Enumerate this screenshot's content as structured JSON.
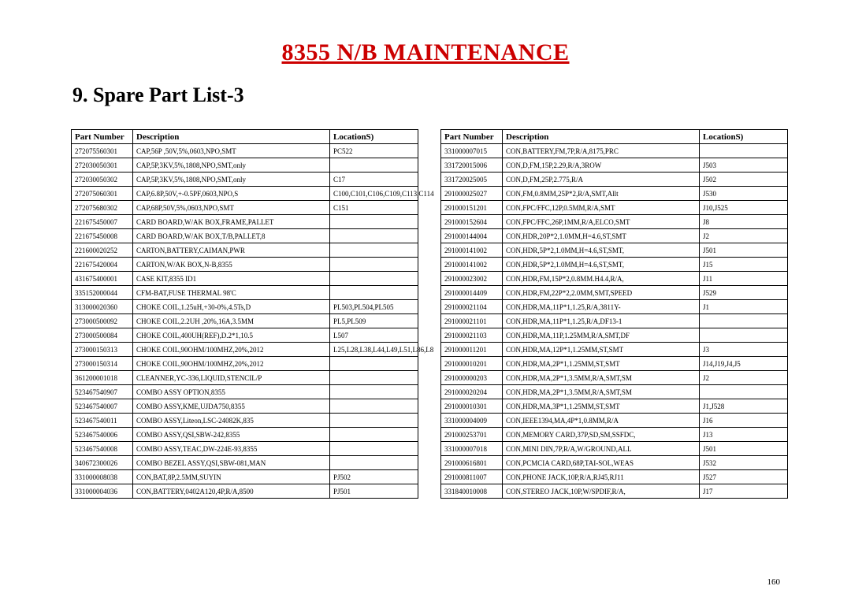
{
  "title": "8355 N/B MAINTENANCE",
  "subtitle": "9. Spare Part List-3",
  "pageNumber": "160",
  "headers": {
    "pn": "Part Number",
    "desc": "Description",
    "loc": "LocationS)"
  },
  "left": [
    {
      "pn": "272075560301",
      "desc": "CAP,56P ,50V,5%,0603,NPO,SMT",
      "loc": "PC522"
    },
    {
      "pn": "272030050301",
      "desc": "CAP,5P,3KV,5%,1808,NPO,SMT,only",
      "loc": ""
    },
    {
      "pn": "272030050302",
      "desc": "CAP,5P,3KV,5%,1808,NPO,SMT,only",
      "loc": "C17"
    },
    {
      "pn": "272075060301",
      "desc": "CAP,6.8P,50V,+-0.5PF,0603,NPO,S",
      "loc": "C100,C101,C106,C109,C113,C114"
    },
    {
      "pn": "272075680302",
      "desc": "CAP,68P,50V,5%,0603,NPO,SMT",
      "loc": "C151"
    },
    {
      "pn": "221675450007",
      "desc": "CARD BOARD,W/AK BOX,FRAME,PALLET",
      "loc": ""
    },
    {
      "pn": "221675450008",
      "desc": "CARD BOARD,W/AK BOX,T/B,PALLET,8",
      "loc": ""
    },
    {
      "pn": "221600020252",
      "desc": "CARTON,BATTERY,CAIMAN,PWR",
      "loc": ""
    },
    {
      "pn": "221675420004",
      "desc": "CARTON,W/AK BOX,N-B,8355",
      "loc": ""
    },
    {
      "pn": "431675400001",
      "desc": "CASE KIT,8355 ID1",
      "loc": ""
    },
    {
      "pn": "335152000044",
      "desc": "CFM-BAT,FUSE THERMAL 98'C",
      "loc": ""
    },
    {
      "pn": "313000020360",
      "desc": "CHOKE COIL,1.25uH,+30-0%,4.5Ts,D",
      "loc": "PL503,PL504,PL505"
    },
    {
      "pn": "273000500092",
      "desc": "CHOKE COIL,2.2UH ,20%,16A,3.5MM",
      "loc": "PL5,PL509"
    },
    {
      "pn": "273000500084",
      "desc": "CHOKE COIL,400UH(REF),D.2*1,10.5",
      "loc": "L507"
    },
    {
      "pn": "273000150313",
      "desc": "CHOKE COIL,90OHM/100MHZ,20%,2012",
      "loc": "L25,L28,L38,L44,L49,L51,L86,L8"
    },
    {
      "pn": "273000150314",
      "desc": "CHOKE COIL,90OHM/100MHZ,20%,2012",
      "loc": ""
    },
    {
      "pn": "361200001018",
      "desc": "CLEANNER,YC-336,LIQUID,STENCIL/P",
      "loc": ""
    },
    {
      "pn": "523467540907",
      "desc": "COMBO ASSY OPTION,8355",
      "loc": ""
    },
    {
      "pn": "523467540007",
      "desc": "COMBO ASSY,KME,UJDA750,8355",
      "loc": ""
    },
    {
      "pn": "523467540011",
      "desc": "COMBO ASSY,Liteon,LSC-24082K,835",
      "loc": ""
    },
    {
      "pn": "523467540006",
      "desc": "COMBO ASSY,QSI,SBW-242,8355",
      "loc": ""
    },
    {
      "pn": "523467540008",
      "desc": "COMBO ASSY,TEAC,DW-224E-93,8355",
      "loc": ""
    },
    {
      "pn": "340672300026",
      "desc": "COMBO BEZEL ASSY,QSI,SBW-081,MAN",
      "loc": ""
    },
    {
      "pn": "331000008038",
      "desc": "CON,BAT,8P,2.5MM,SUYIN",
      "loc": "PJ502"
    },
    {
      "pn": "331000004036",
      "desc": "CON,BATTERY,0402A120,4P,R/A,8500",
      "loc": "PJ501"
    }
  ],
  "right": [
    {
      "pn": "331000007015",
      "desc": "CON,BATTERY,FM,7P,R/A,8175,PRC",
      "loc": ""
    },
    {
      "pn": "331720015006",
      "desc": "CON,D,FM,15P,2.29,R/A,3ROW",
      "loc": "J503"
    },
    {
      "pn": "331720025005",
      "desc": "CON,D,FM,25P,2.775,R/A",
      "loc": "J502"
    },
    {
      "pn": "291000025027",
      "desc": "CON,FM,0.8MM,25P*2,R/A,SMT,Allt",
      "loc": "J530"
    },
    {
      "pn": "291000151201",
      "desc": "CON,FPC/FFC,12P,0.5MM,R/A,SMT",
      "loc": "J10,J525"
    },
    {
      "pn": "291000152604",
      "desc": "CON,FPC/FFC,26P,1MM,R/A,ELCO,SMT",
      "loc": "J8"
    },
    {
      "pn": "291000144004",
      "desc": "CON,HDR,20P*2,1.0MM,H=4.6,ST,SMT",
      "loc": "J2"
    },
    {
      "pn": "291000141002",
      "desc": "CON,HDR,5P*2,1.0MM,H=4.6,ST,SMT,",
      "loc": "J501"
    },
    {
      "pn": "291000141002",
      "desc": "CON,HDR,5P*2,1.0MM,H=4.6,ST,SMT,",
      "loc": "J15"
    },
    {
      "pn": "291000023002",
      "desc": "CON,HDR,FM,15P*2,0.8MM.H4.4,R/A,",
      "loc": "J11"
    },
    {
      "pn": "291000014409",
      "desc": "CON,HDR,FM,22P*2,2.0MM,SMT,SPEED",
      "loc": "J529"
    },
    {
      "pn": "291000021104",
      "desc": "CON,HDR,MA,11P*1,1.25,R/A,3811Y-",
      "loc": "J1"
    },
    {
      "pn": "291000021101",
      "desc": "CON,HDR,MA,11P*1,1.25,R/A,DF13-1",
      "loc": ""
    },
    {
      "pn": "291000021103",
      "desc": "CON,HDR,MA,11P,1.25MM,R/A,SMT,DF",
      "loc": ""
    },
    {
      "pn": "291000011201",
      "desc": "CON,HDR,MA,12P*1,1.25MM,ST,SMT",
      "loc": "J3"
    },
    {
      "pn": "291000010201",
      "desc": "CON,HDR,MA,2P*1,1.25MM,ST,SMT",
      "loc": "J14,J19,J4,J5"
    },
    {
      "pn": "291000000203",
      "desc": "CON,HDR,MA,2P*1,3.5MM,R/A,SMT,SM",
      "loc": "J2"
    },
    {
      "pn": "291000020204",
      "desc": "CON,HDR,MA,2P*1,3.5MM,R/A,SMT,SM",
      "loc": ""
    },
    {
      "pn": "291000010301",
      "desc": "CON,HDR,MA,3P*1,1.25MM,ST,SMT",
      "loc": "J1,J528"
    },
    {
      "pn": "331000004009",
      "desc": "CON,IEEE1394,MA,4P*1,0.8MM,R/A",
      "loc": "J16"
    },
    {
      "pn": "291000253701",
      "desc": "CON,MEMORY CARD,37P,SD,SM,SSFDC,",
      "loc": "J13"
    },
    {
      "pn": "331000007018",
      "desc": "CON,MINI DIN,7P,R/A,W/GROUND,ALL",
      "loc": "J501"
    },
    {
      "pn": "291000616801",
      "desc": "CON,PCMCIA CARD,68P,TAI-SOL,WEAS",
      "loc": "J532"
    },
    {
      "pn": "291000811007",
      "desc": "CON,PHONE JACK,10P,R/A,RJ45,RJ11",
      "loc": "J527"
    },
    {
      "pn": "331840010008",
      "desc": "CON,STEREO JACK,10P,W/SPDIF,R/A,",
      "loc": "J17"
    }
  ]
}
